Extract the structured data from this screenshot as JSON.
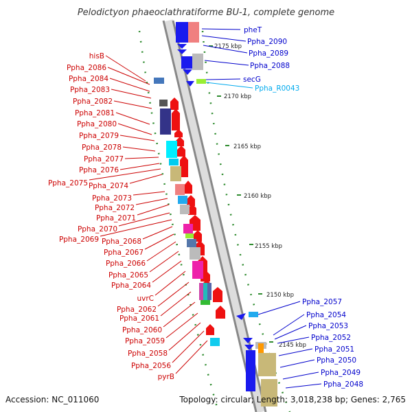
{
  "title": "Pelodictyon phaeoclathratiforme BU-1, complete genome",
  "footer": {
    "accession": "Accession: NC_011060",
    "topology": "Topology: circular; Length: 3,018,238 bp; Genes: 2,765"
  },
  "colors": {
    "reverse_label": "#cc0000",
    "forward_label": "#0000cc",
    "rna_label": "#00aaee",
    "backbone": "#888888",
    "tick": "#2e8b2e"
  },
  "scale_ticks": [
    "2175 kbp",
    "2170 kbp",
    "2165 kbp",
    "2160 kbp",
    "2155 kbp",
    "2150 kbp",
    "2145 kbp"
  ],
  "reverse_genes": [
    "hisB",
    "Ppha_2086",
    "Ppha_2084",
    "Ppha_2083",
    "Ppha_2082",
    "Ppha_2081",
    "Ppha_2080",
    "Ppha_2079",
    "Ppha_2078",
    "Ppha_2077",
    "Ppha_2076",
    "Ppha_2075",
    "Ppha_2074",
    "Ppha_2073",
    "Ppha_2072",
    "Ppha_2071",
    "Ppha_2070",
    "Ppha_2069",
    "Ppha_2068",
    "Ppha_2067",
    "Ppha_2066",
    "Ppha_2065",
    "Ppha_2064",
    "uvrC",
    "Ppha_2062",
    "Ppha_2061",
    "Ppha_2060",
    "Ppha_2059",
    "Ppha_2058",
    "Ppha_2056",
    "pyrB"
  ],
  "forward_genes": [
    "pheT",
    "Ppha_2090",
    "Ppha_2089",
    "Ppha_2088",
    "secG",
    "Ppha_R0043",
    "Ppha_2057",
    "Ppha_2054",
    "Ppha_2053",
    "Ppha_2052",
    "Ppha_2051",
    "Ppha_2050",
    "Ppha_2049",
    "Ppha_2048"
  ]
}
